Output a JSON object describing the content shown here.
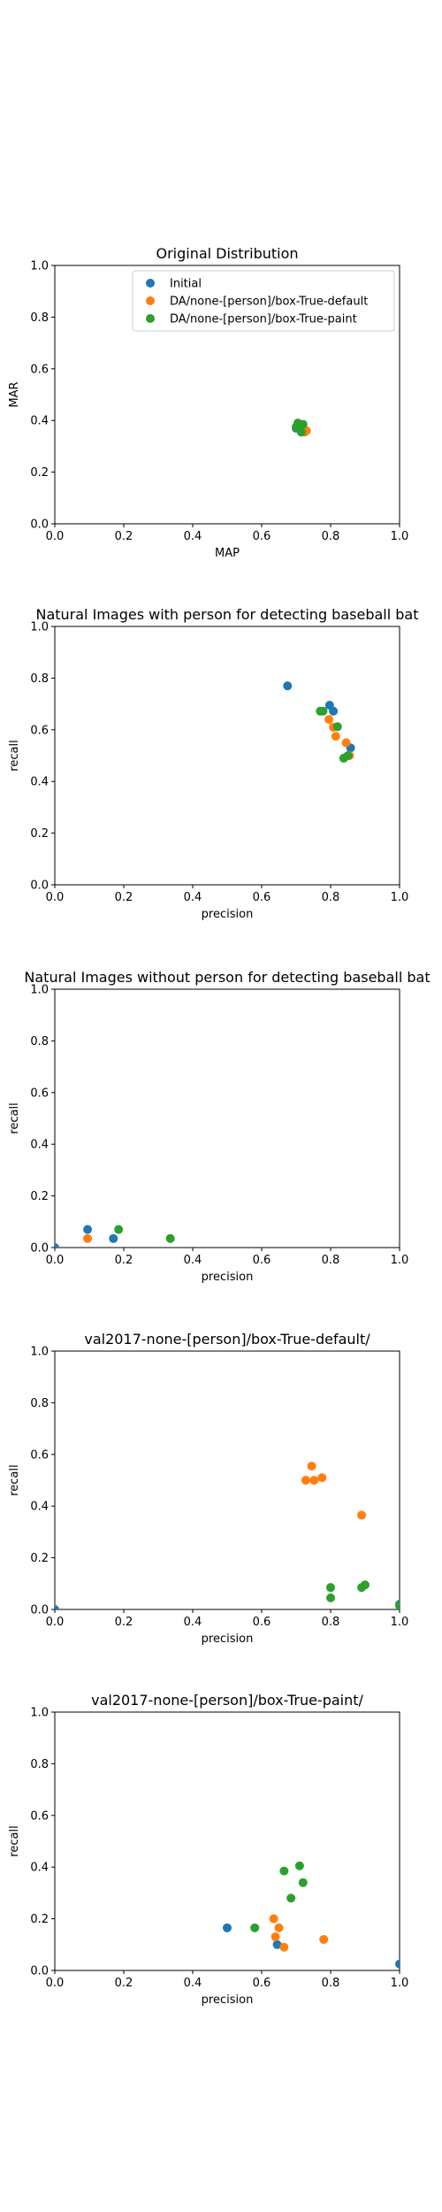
{
  "colors": {
    "blue": "#1f77b4",
    "orange": "#ff7f0e",
    "green": "#2ca02c"
  },
  "chart_data": [
    {
      "type": "scatter",
      "title": "Original Distribution",
      "xlabel": "MAP",
      "ylabel": "MAR",
      "xlim": [
        0,
        1
      ],
      "ylim": [
        0,
        1
      ],
      "xticks": [
        "0.0",
        "0.2",
        "0.4",
        "0.6",
        "0.8",
        "1.0"
      ],
      "yticks": [
        "0.0",
        "0.2",
        "0.4",
        "0.6",
        "0.8",
        "1.0"
      ],
      "grid": false,
      "legend_position": "upper-right",
      "series": [
        {
          "name": "Initial",
          "color": "#1f77b4",
          "points": [
            [
              0.7,
              0.37
            ],
            [
              0.71,
              0.385
            ],
            [
              0.705,
              0.375
            ],
            [
              0.715,
              0.38
            ]
          ]
        },
        {
          "name": "DA/none-[person]/box-True-default",
          "color": "#ff7f0e",
          "points": [
            [
              0.72,
              0.37
            ],
            [
              0.725,
              0.355
            ],
            [
              0.73,
              0.36
            ],
            [
              0.715,
              0.365
            ]
          ]
        },
        {
          "name": "DA/none-[person]/box-True-paint",
          "color": "#2ca02c",
          "points": [
            [
              0.705,
              0.39
            ],
            [
              0.71,
              0.38
            ],
            [
              0.72,
              0.385
            ],
            [
              0.715,
              0.355
            ],
            [
              0.7,
              0.375
            ]
          ]
        }
      ]
    },
    {
      "type": "scatter",
      "title": "Natural Images with person for detecting baseball bat",
      "xlabel": "precision",
      "ylabel": "recall",
      "xlim": [
        0,
        1
      ],
      "ylim": [
        0,
        1
      ],
      "xticks": [
        "0.0",
        "0.2",
        "0.4",
        "0.6",
        "0.8",
        "1.0"
      ],
      "yticks": [
        "0.0",
        "0.2",
        "0.4",
        "0.6",
        "0.8",
        "1.0"
      ],
      "grid": false,
      "series": [
        {
          "color": "#1f77b4",
          "points": [
            [
              0.675,
              0.77
            ],
            [
              0.797,
              0.695
            ],
            [
              0.808,
              0.672
            ],
            [
              0.858,
              0.53
            ]
          ]
        },
        {
          "color": "#ff7f0e",
          "points": [
            [
              0.795,
              0.64
            ],
            [
              0.808,
              0.61
            ],
            [
              0.815,
              0.575
            ],
            [
              0.845,
              0.55
            ],
            [
              0.855,
              0.5
            ]
          ]
        },
        {
          "color": "#2ca02c",
          "points": [
            [
              0.77,
              0.672
            ],
            [
              0.778,
              0.672
            ],
            [
              0.82,
              0.612
            ],
            [
              0.838,
              0.49
            ],
            [
              0.85,
              0.5
            ]
          ]
        }
      ]
    },
    {
      "type": "scatter",
      "title": "Natural Images without person for detecting baseball bat",
      "xlabel": "precision",
      "ylabel": "recall",
      "xlim": [
        0,
        1
      ],
      "ylim": [
        0,
        1
      ],
      "xticks": [
        "0.0",
        "0.2",
        "0.4",
        "0.6",
        "0.8",
        "1.0"
      ],
      "yticks": [
        "0.0",
        "0.2",
        "0.4",
        "0.6",
        "0.8",
        "1.0"
      ],
      "grid": false,
      "series": [
        {
          "color": "#1f77b4",
          "points": [
            [
              0.0,
              0.0
            ],
            [
              0.095,
              0.07
            ],
            [
              0.17,
              0.035
            ]
          ]
        },
        {
          "color": "#ff7f0e",
          "points": [
            [
              0.095,
              0.035
            ]
          ]
        },
        {
          "color": "#2ca02c",
          "points": [
            [
              0.185,
              0.07
            ],
            [
              0.335,
              0.035
            ]
          ]
        }
      ]
    },
    {
      "type": "scatter",
      "title": "val2017-none-[person]/box-True-default/",
      "xlabel": "precision",
      "ylabel": "recall",
      "xlim": [
        0,
        1
      ],
      "ylim": [
        0,
        1
      ],
      "xticks": [
        "0.0",
        "0.2",
        "0.4",
        "0.6",
        "0.8",
        "1.0"
      ],
      "yticks": [
        "0.0",
        "0.2",
        "0.4",
        "0.6",
        "0.8",
        "1.0"
      ],
      "grid": false,
      "series": [
        {
          "color": "#1f77b4",
          "points": [
            [
              0.0,
              0.0
            ],
            [
              1.0,
              0.02
            ]
          ]
        },
        {
          "color": "#ff7f0e",
          "points": [
            [
              0.728,
              0.5
            ],
            [
              0.745,
              0.555
            ],
            [
              0.752,
              0.5
            ],
            [
              0.775,
              0.51
            ],
            [
              0.89,
              0.365
            ]
          ]
        },
        {
          "color": "#2ca02c",
          "points": [
            [
              0.8,
              0.085
            ],
            [
              0.8,
              0.045
            ],
            [
              0.89,
              0.085
            ],
            [
              0.9,
              0.095
            ],
            [
              1.0,
              0.015
            ]
          ]
        }
      ]
    },
    {
      "type": "scatter",
      "title": "val2017-none-[person]/box-True-paint/",
      "xlabel": "precision",
      "ylabel": "recall",
      "xlim": [
        0,
        1
      ],
      "ylim": [
        0,
        1
      ],
      "xticks": [
        "0.0",
        "0.2",
        "0.4",
        "0.6",
        "0.8",
        "1.0"
      ],
      "yticks": [
        "0.0",
        "0.2",
        "0.4",
        "0.6",
        "0.8",
        "1.0"
      ],
      "grid": false,
      "series": [
        {
          "color": "#1f77b4",
          "points": [
            [
              0.5,
              0.165
            ],
            [
              0.645,
              0.1
            ],
            [
              1.0,
              0.025
            ]
          ]
        },
        {
          "color": "#ff7f0e",
          "points": [
            [
              0.635,
              0.2
            ],
            [
              0.64,
              0.13
            ],
            [
              0.65,
              0.165
            ],
            [
              0.665,
              0.09
            ],
            [
              0.78,
              0.12
            ]
          ]
        },
        {
          "color": "#2ca02c",
          "points": [
            [
              0.58,
              0.165
            ],
            [
              0.665,
              0.385
            ],
            [
              0.685,
              0.28
            ],
            [
              0.71,
              0.405
            ],
            [
              0.72,
              0.34
            ]
          ]
        }
      ]
    }
  ]
}
